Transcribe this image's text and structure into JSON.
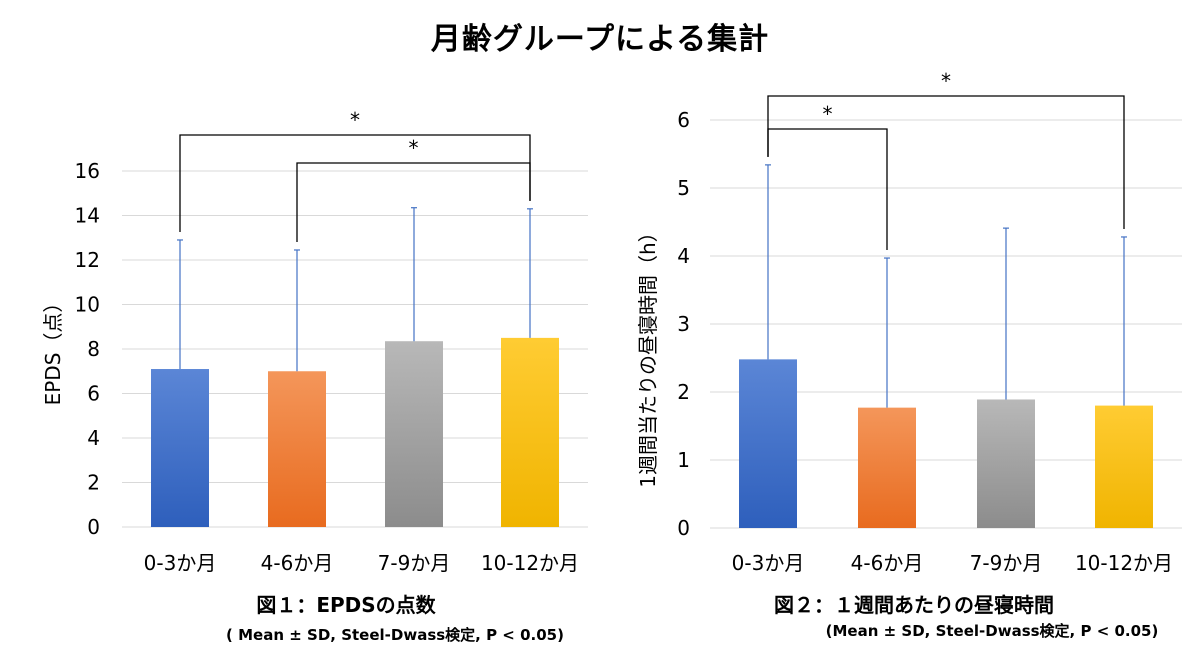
{
  "title": "月齢グループによる集計",
  "chart_data": [
    {
      "type": "bar",
      "categories": [
        "0-3か月",
        "4-6か月",
        "7-9か月",
        "10-12か月"
      ],
      "values": [
        7.1,
        7.0,
        8.35,
        8.5
      ],
      "errors": [
        5.8,
        5.45,
        6.0,
        5.8
      ],
      "ylabel": "EPDS（点）",
      "ylim": [
        0,
        16
      ],
      "yticks": [
        0,
        2,
        4,
        6,
        8,
        10,
        12,
        14,
        16
      ],
      "grid": true,
      "caption": "図１：EPDSの点数",
      "note": "( Mean ± SD, Steel-Dwass検定, P < 0.05)",
      "significance": [
        {
          "from": "0-3か月",
          "to": "10-12か月",
          "label": "*"
        },
        {
          "from": "4-6か月",
          "to": "10-12か月",
          "label": "*"
        }
      ]
    },
    {
      "type": "bar",
      "categories": [
        "0-3か月",
        "4-6か月",
        "7-9か月",
        "10-12か月"
      ],
      "values": [
        2.48,
        1.77,
        1.89,
        1.8
      ],
      "errors": [
        2.86,
        2.2,
        2.52,
        2.48
      ],
      "ylabel": "1週間当たりの昼寝時間（h）",
      "ylim": [
        0,
        6
      ],
      "yticks": [
        0,
        1,
        2,
        3,
        4,
        5,
        6
      ],
      "grid": true,
      "caption": "図２：１週間あたりの昼寝時間",
      "note": "(Mean ± SD, Steel-Dwass検定, P < 0.05)",
      "significance": [
        {
          "from": "0-3か月",
          "to": "4-6か月",
          "label": "*"
        },
        {
          "from": "0-3か月",
          "to": "10-12か月",
          "label": "*"
        }
      ]
    }
  ],
  "colors": {
    "series": [
      [
        "#5b86d6",
        "#2e5fbc"
      ],
      [
        "#f4965a",
        "#e86b1f"
      ],
      [
        "#b8b8b8",
        "#8c8c8c"
      ],
      [
        "#ffcc33",
        "#f0b400"
      ]
    ],
    "error": "#4472c4",
    "grid": "#d9d9d9"
  }
}
